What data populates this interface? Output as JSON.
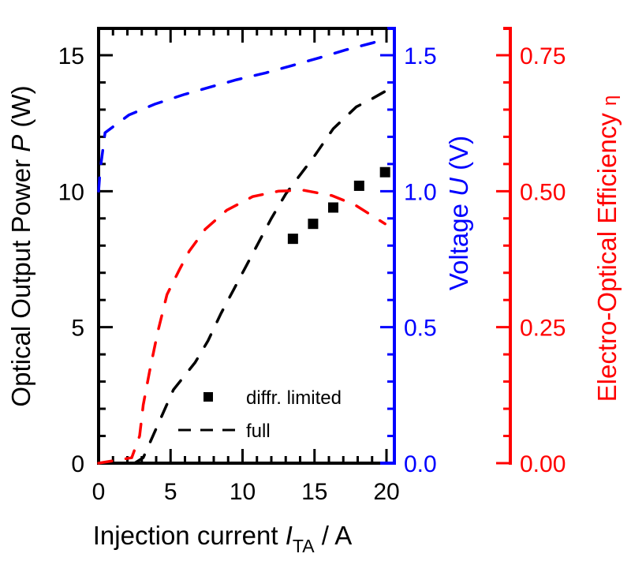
{
  "chart_data": {
    "type": "line",
    "title": "",
    "x": {
      "label_main": "Injection current ",
      "label_symbol": "I",
      "label_sub": "TA",
      "label_unit": " / A",
      "range": [
        0,
        20.5
      ],
      "ticks": [
        0,
        5,
        10,
        15,
        20
      ],
      "tick_labels": [
        "0",
        "5",
        "10",
        "15",
        "20"
      ],
      "minor_step": 1
    },
    "y_left": {
      "label_main": "Optical Output Power ",
      "label_symbol": "P",
      "label_unit": " (W)",
      "range": [
        0,
        16
      ],
      "ticks": [
        0,
        5,
        10,
        15
      ],
      "tick_labels": [
        "0",
        "5",
        "10",
        "15"
      ],
      "minor_step": 1,
      "color": "#000000"
    },
    "y_right1": {
      "label_main": "Voltage ",
      "label_symbol": "U",
      "label_unit": " (V)",
      "range": [
        0,
        1.6
      ],
      "ticks": [
        0,
        0.5,
        1.0,
        1.5
      ],
      "tick_labels": [
        "0.0",
        "0.5",
        "1.0",
        "1.5"
      ],
      "minor_step": 0.1,
      "color": "#0000ff"
    },
    "y_right2": {
      "label_main": "Electro-Optical Efficiency ",
      "label_symbol": "η",
      "range": [
        0,
        0.8
      ],
      "ticks": [
        0,
        0.25,
        0.5,
        0.75
      ],
      "tick_labels": [
        "0.00",
        "0.25",
        "0.50",
        "0.75"
      ],
      "minor_step": 0.05,
      "color": "#ff0000"
    },
    "series": [
      {
        "name": "full",
        "axis": "left",
        "style": "dashed",
        "color": "#000000",
        "x": [
          2.5,
          3.1,
          5.2,
          6.7,
          7.6,
          8.5,
          9.4,
          10.3,
          11.1,
          12.0,
          13.0,
          14.0,
          15.0,
          16.3,
          17.9,
          19.0,
          20.0
        ],
        "y": [
          0.0,
          0.2,
          2.7,
          3.7,
          4.5,
          5.5,
          6.4,
          7.3,
          8.1,
          9.0,
          9.9,
          10.6,
          11.3,
          12.3,
          13.1,
          13.4,
          13.7
        ]
      },
      {
        "name": "diffr. limited",
        "axis": "left",
        "style": "markers",
        "marker": "square",
        "color": "#000000",
        "x": [
          13.5,
          14.9,
          16.3,
          18.1,
          19.9
        ],
        "y": [
          8.25,
          8.8,
          9.4,
          10.2,
          10.7
        ]
      },
      {
        "name": "Voltage",
        "axis": "right1",
        "style": "dashed",
        "color": "#0000ff",
        "x": [
          0.0,
          0.1,
          0.45,
          2.1,
          3.9,
          5.9,
          7.9,
          9.6,
          11.6,
          13.3,
          15.3,
          17.2,
          19.0,
          20.0
        ],
        "y": [
          1.0,
          1.073,
          1.215,
          1.28,
          1.32,
          1.355,
          1.385,
          1.41,
          1.435,
          1.46,
          1.49,
          1.52,
          1.545,
          1.56
        ]
      },
      {
        "name": "Efficiency",
        "axis": "right2",
        "style": "dashed",
        "color": "#ff0000",
        "x": [
          0.0,
          2.3,
          2.85,
          3.1,
          3.55,
          4.1,
          4.75,
          5.6,
          6.3,
          7.4,
          8.9,
          10.7,
          12.5,
          14.2,
          16.2,
          17.8,
          19.9
        ],
        "y": [
          0.0,
          0.01,
          0.05,
          0.107,
          0.17,
          0.24,
          0.31,
          0.355,
          0.39,
          0.43,
          0.465,
          0.49,
          0.5,
          0.502,
          0.492,
          0.475,
          0.44
        ]
      }
    ],
    "legend": {
      "placement": "bottom-center",
      "entries": [
        {
          "label": "diffr. limited",
          "kind": "square-marker"
        },
        {
          "label": "full",
          "kind": "dashed-line"
        }
      ]
    },
    "grid": false
  }
}
